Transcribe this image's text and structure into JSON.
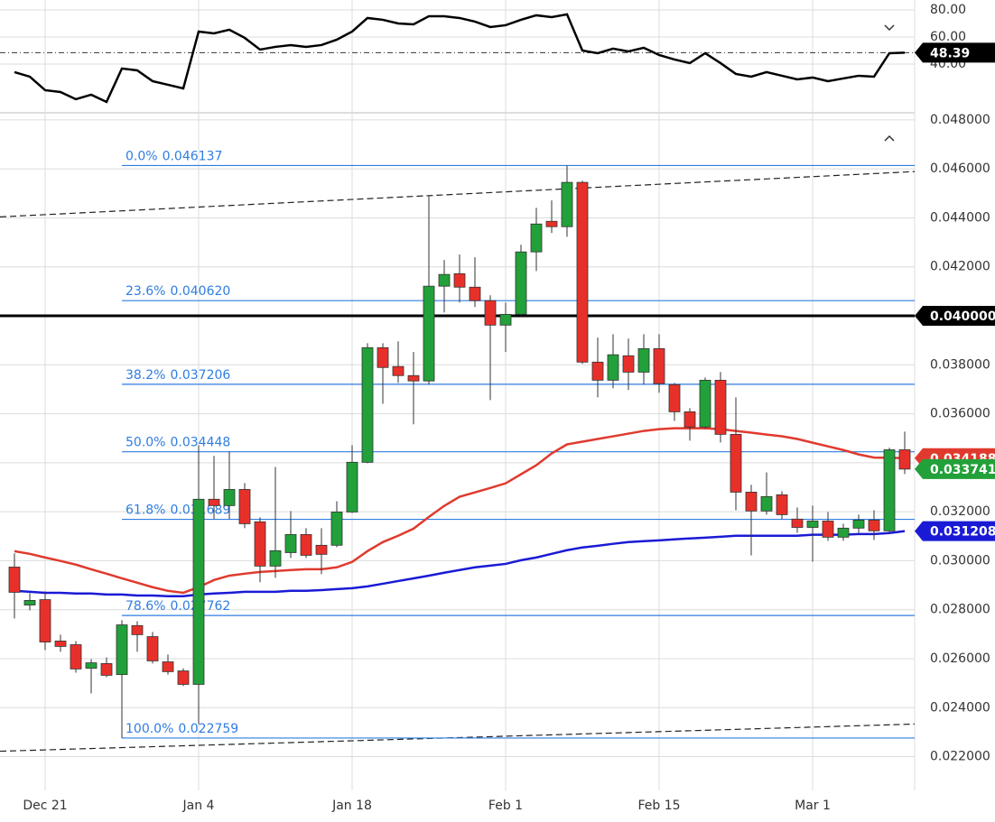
{
  "chart_data": [
    {
      "type": "line",
      "series": [
        {
          "color": "#000000",
          "values": [
            34.0,
            30.67,
            20.67,
            19.33,
            14.0,
            17.33,
            12.0,
            36.67,
            35.33,
            27.33,
            24.67,
            22.0,
            64.0,
            62.67,
            65.33,
            59.33,
            50.67,
            52.67,
            54.0,
            52.67,
            54.0,
            58.0,
            64.0,
            74.0,
            72.67,
            70.0,
            69.33,
            75.33,
            75.33,
            74.0,
            71.33,
            67.33,
            68.67,
            72.67,
            76.0,
            74.67,
            76.67,
            50.0,
            48.0,
            51.33,
            49.33,
            52.0,
            46.67,
            43.33,
            40.67,
            48.0,
            40.67,
            32.67,
            30.67,
            34.0,
            31.33,
            28.67,
            30.0,
            27.33,
            29.33,
            31.33,
            30.67,
            48.0,
            48.39
          ]
        }
      ],
      "ylim": [
        5.3,
        87.3
      ],
      "yticks": [
        {
          "value": 40,
          "label": "40.00"
        },
        {
          "value": 60,
          "label": "60.00"
        },
        {
          "value": 80,
          "label": "80.00"
        }
      ],
      "grid": true
    },
    {
      "type": "candlestick",
      "categories": [
        null,
        null,
        "Dec 21",
        null,
        null,
        null,
        null,
        null,
        null,
        null,
        null,
        null,
        "Jan 4",
        null,
        null,
        null,
        null,
        null,
        null,
        null,
        null,
        null,
        "Jan 18",
        null,
        null,
        null,
        null,
        null,
        null,
        null,
        null,
        null,
        "Feb 1",
        null,
        null,
        null,
        null,
        null,
        null,
        null,
        null,
        null,
        "Feb 15",
        null,
        null,
        null,
        null,
        null,
        null,
        null,
        null,
        null,
        "Mar 1",
        null,
        null,
        null,
        null,
        null,
        null
      ],
      "open": [
        0.02974,
        0.02819,
        0.02841,
        0.02672,
        0.02657,
        0.02561,
        0.0258,
        0.02535,
        0.02735,
        0.0269,
        0.02587,
        0.0255,
        0.02495,
        0.03251,
        0.03225,
        0.03291,
        0.03159,
        0.02978,
        0.03033,
        0.03107,
        0.03063,
        0.03063,
        0.03199,
        0.03402,
        0.0387,
        0.03793,
        0.03756,
        0.03734,
        0.04121,
        0.04172,
        0.04117,
        0.04062,
        0.03962,
        0.04006,
        0.04261,
        0.04386,
        0.04364,
        0.04545,
        0.03811,
        0.03737,
        0.03837,
        0.0377,
        0.03866,
        0.03719,
        0.03608,
        0.03546,
        0.03737,
        0.03516,
        0.0328,
        0.03203,
        0.03269,
        0.0317,
        0.03136,
        0.03162,
        0.03096,
        0.03133,
        0.03166,
        0.03122,
        0.03453
      ],
      "high": [
        0.0303,
        0.02867,
        0.02875,
        0.02698,
        0.02672,
        0.02598,
        0.02605,
        0.02757,
        0.02753,
        0.02709,
        0.02617,
        0.02561,
        0.03472,
        0.03428,
        0.03446,
        0.03317,
        0.03177,
        0.03383,
        0.03203,
        0.03133,
        0.03133,
        0.03243,
        0.03472,
        0.03888,
        0.03888,
        0.03896,
        0.03852,
        0.04489,
        0.04228,
        0.0425,
        0.04239,
        0.04084,
        0.04054,
        0.0429,
        0.04441,
        0.04471,
        0.046137,
        0.04552,
        0.03911,
        0.03925,
        0.03907,
        0.03925,
        0.03925,
        0.03726,
        0.03623,
        0.03748,
        0.0377,
        0.03667,
        0.0331,
        0.03361,
        0.03284,
        0.03217,
        0.03225,
        0.03199,
        0.03151,
        0.03188,
        0.03206,
        0.03461,
        0.03527
      ],
      "low": [
        0.02764,
        0.02797,
        0.02635,
        0.02628,
        0.02543,
        0.02458,
        0.02524,
        0.022759,
        0.02628,
        0.0258,
        0.02535,
        0.02488,
        0.02333,
        0.0317,
        0.0317,
        0.03133,
        0.02912,
        0.0293,
        0.03011,
        0.03011,
        0.02945,
        0.03055,
        0.03195,
        0.03398,
        0.03641,
        0.03726,
        0.03557,
        0.03719,
        0.04014,
        0.04054,
        0.04036,
        0.03656,
        0.03852,
        0.03999,
        0.04183,
        0.04338,
        0.04323,
        0.03804,
        0.03667,
        0.03704,
        0.03697,
        0.03719,
        0.03686,
        0.03571,
        0.0349,
        0.03538,
        0.03483,
        0.03206,
        0.03022,
        0.03188,
        0.0317,
        0.03114,
        0.02996,
        0.03081,
        0.03081,
        0.03114,
        0.03085,
        0.03114,
        0.03354
      ],
      "close": [
        0.02871,
        0.02838,
        0.02668,
        0.0265,
        0.02558,
        0.02583,
        0.02532,
        0.02738,
        0.02698,
        0.02591,
        0.02547,
        0.02495,
        0.03251,
        0.03225,
        0.03291,
        0.03151,
        0.02978,
        0.03041,
        0.03107,
        0.03022,
        0.03026,
        0.03199,
        0.03402,
        0.0387,
        0.03789,
        0.03756,
        0.03734,
        0.04121,
        0.04169,
        0.04117,
        0.04062,
        0.03962,
        0.04006,
        0.04261,
        0.04375,
        0.04364,
        0.04545,
        0.03811,
        0.03737,
        0.03841,
        0.0377,
        0.03866,
        0.03723,
        0.03608,
        0.03546,
        0.03737,
        0.03516,
        0.0328,
        0.03203,
        0.03262,
        0.03188,
        0.03136,
        0.03162,
        0.03096,
        0.03133,
        0.03166,
        0.03122,
        0.03453,
        0.033741
      ],
      "up_color": "#22a03a",
      "down_color": "#e8302a",
      "series": [
        {
          "color": "#e03a2e",
          "values": [
            0.03039,
            0.03028,
            0.03013,
            0.02999,
            0.02984,
            0.02965,
            0.02947,
            0.02928,
            0.0291,
            0.02892,
            0.02877,
            0.02869,
            0.02892,
            0.02921,
            0.02939,
            0.02947,
            0.02954,
            0.02958,
            0.02962,
            0.02965,
            0.02965,
            0.02973,
            0.02995,
            0.03039,
            0.03076,
            0.03102,
            0.03131,
            0.03179,
            0.03224,
            0.03261,
            0.03279,
            0.03297,
            0.03316,
            0.03353,
            0.0339,
            0.03438,
            0.03475,
            0.03486,
            0.03497,
            0.03508,
            0.03519,
            0.0353,
            0.03537,
            0.03541,
            0.03541,
            0.03541,
            0.03537,
            0.0353,
            0.03523,
            0.03515,
            0.03508,
            0.03497,
            0.03482,
            0.03467,
            0.03452,
            0.03434,
            0.03421,
            0.0342,
            0.034188
          ]
        },
        {
          "color": "#1a1ad6",
          "values": [
            0.02877,
            0.02873,
            0.02869,
            0.02869,
            0.02866,
            0.02866,
            0.02862,
            0.02862,
            0.02858,
            0.02858,
            0.02855,
            0.02855,
            0.02862,
            0.02866,
            0.02869,
            0.02873,
            0.02873,
            0.02873,
            0.02877,
            0.02877,
            0.0288,
            0.02884,
            0.02888,
            0.02895,
            0.02906,
            0.02917,
            0.02928,
            0.02939,
            0.02951,
            0.02962,
            0.02973,
            0.0298,
            0.02987,
            0.03002,
            0.03013,
            0.03028,
            0.03043,
            0.03054,
            0.03061,
            0.03069,
            0.03076,
            0.0308,
            0.03083,
            0.03087,
            0.03091,
            0.03094,
            0.03098,
            0.03102,
            0.03102,
            0.03102,
            0.03102,
            0.03102,
            0.03106,
            0.03106,
            0.03106,
            0.03109,
            0.03109,
            0.03113,
            0.031208
          ]
        }
      ],
      "ylim": [
        0.02062,
        0.04818
      ],
      "yticks": [
        {
          "value": 0.022,
          "label": "0.022000"
        },
        {
          "value": 0.024,
          "label": "0.024000"
        },
        {
          "value": 0.026,
          "label": "0.026000"
        },
        {
          "value": 0.028,
          "label": "0.028000"
        },
        {
          "value": 0.03,
          "label": "0.030000"
        },
        {
          "value": 0.032,
          "label": "0.032000"
        },
        {
          "value": 0.034,
          "label": "0.034000"
        },
        {
          "value": 0.036,
          "label": "0.036000"
        },
        {
          "value": 0.038,
          "label": "0.038000"
        },
        {
          "value": 0.04,
          "label": "0.040000"
        },
        {
          "value": 0.042,
          "label": "0.042000"
        },
        {
          "value": 0.044,
          "label": "0.044000"
        },
        {
          "value": 0.046,
          "label": "0.046000"
        },
        {
          "value": 0.048,
          "label": "0.048000"
        }
      ],
      "grid": true,
      "level": {
        "value": 0.04,
        "label": "0.040000"
      },
      "fibonacci": {
        "labels": [
          "0.0%",
          "23.6%",
          "38.2%",
          "50.0%",
          "61.8%",
          "78.6%",
          "100.0%"
        ],
        "values": [
          0.046137,
          0.04062,
          0.037206,
          0.034448,
          0.031689,
          0.027762,
          0.022759
        ],
        "value_labels": [
          "0.046137",
          "0.040620",
          "0.037206",
          "0.034448",
          "0.031689",
          "0.027762",
          "0.022759"
        ],
        "color": "#2f7de1"
      },
      "trendlines": [
        {
          "start": 0.04404,
          "end": 0.04589
        },
        {
          "start": 0.02222,
          "end": 0.02333
        }
      ]
    }
  ]
}
